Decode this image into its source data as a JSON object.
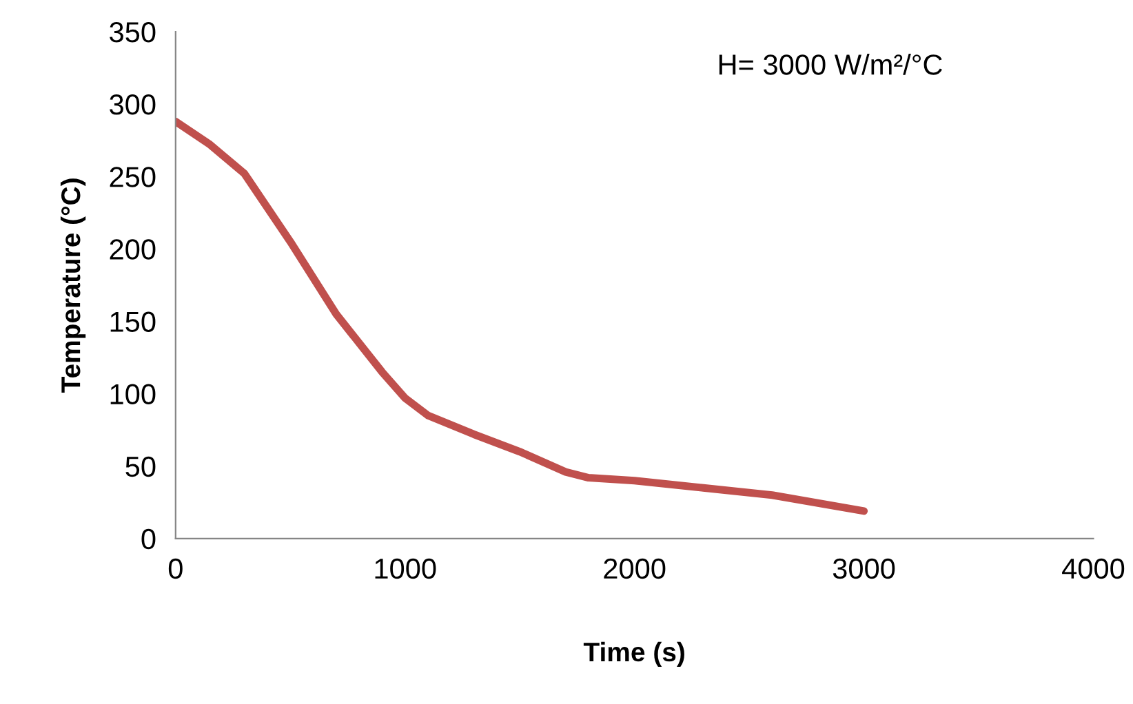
{
  "chart_data": {
    "type": "line",
    "xlabel": "Time (s)",
    "ylabel": "Temperature (°C)",
    "annotations": [
      "H= 3000 W/m²/°C"
    ],
    "xlim": [
      0,
      4000
    ],
    "xticks": [
      0,
      1000,
      2000,
      3000,
      4000
    ],
    "ylim": [
      0,
      350
    ],
    "yticks": [
      0,
      50,
      100,
      150,
      200,
      250,
      300,
      350
    ],
    "grid": false,
    "legend": false,
    "marker": "none",
    "line_style": "solid",
    "series": [
      {
        "color": "#c0504d",
        "x": [
          0,
          150,
          300,
          500,
          700,
          900,
          1000,
          1100,
          1300,
          1500,
          1700,
          1800,
          2000,
          2300,
          2600,
          3000
        ],
        "values": [
          288,
          272,
          252,
          205,
          155,
          115,
          97,
          85,
          72,
          60,
          46,
          42,
          40,
          35,
          30,
          19
        ]
      }
    ]
  }
}
